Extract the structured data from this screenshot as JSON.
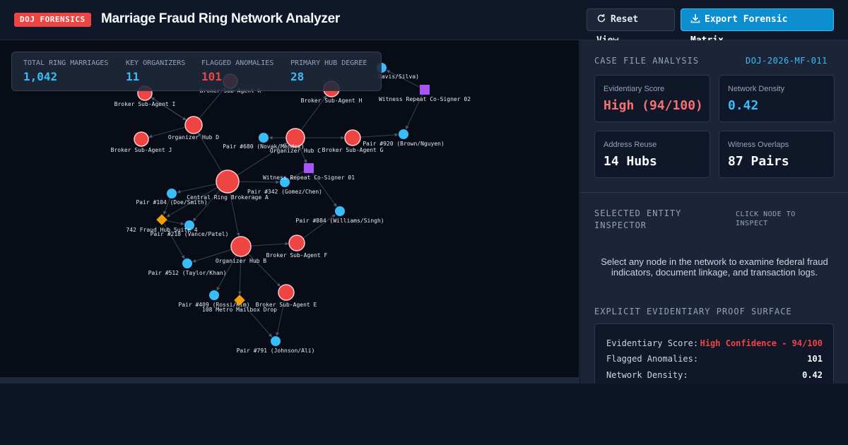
{
  "header": {
    "badge": "DOJ FORENSICS",
    "title": "Marriage Fraud Ring Network Analyzer",
    "reset_label": "Reset View",
    "export_label": "Export Forensic Matrix"
  },
  "stats": [
    {
      "label": "TOTAL RING MARRIAGES",
      "value": "1,042",
      "color": "#38bdf8"
    },
    {
      "label": "KEY ORGANIZERS",
      "value": "11",
      "color": "#38bdf8"
    },
    {
      "label": "FLAGGED ANOMALIES",
      "value": "101",
      "color": "#ef4444"
    },
    {
      "label": "PRIMARY HUB DEGREE",
      "value": "28",
      "color": "#38bdf8"
    }
  ],
  "graph": {
    "colors": {
      "organizer": "#ef4444",
      "pair": "#38bdf8",
      "witness": "#a855f7",
      "address": "#f59e0b"
    },
    "nodes": [
      {
        "id": "A",
        "label": "Central Ring Brokerage A",
        "type": "organizer"
      },
      {
        "id": "B",
        "label": "Organizer Hub B",
        "type": "organizer"
      },
      {
        "id": "C",
        "label": "Organizer Hub C",
        "type": "organizer"
      },
      {
        "id": "D",
        "label": "Organizer Hub D",
        "type": "organizer"
      },
      {
        "id": "E",
        "label": "Broker Sub-Agent E",
        "type": "organizer"
      },
      {
        "id": "F",
        "label": "Broker Sub-Agent F",
        "type": "organizer"
      },
      {
        "id": "G",
        "label": "Broker Sub-Agent G",
        "type": "organizer"
      },
      {
        "id": "H",
        "label": "Broker Sub-Agent H",
        "type": "organizer"
      },
      {
        "id": "I",
        "label": "Broker Sub-Agent I",
        "type": "organizer"
      },
      {
        "id": "J",
        "label": "Broker Sub-Agent J",
        "type": "organizer"
      },
      {
        "id": "K",
        "label": "Broker Sub-Agent K",
        "type": "organizer"
      },
      {
        "id": "P104",
        "label": "Pair #104 (Doe/Smith)",
        "type": "pair"
      },
      {
        "id": "P218",
        "label": "Pair #218 (Vance/Patel)",
        "type": "pair"
      },
      {
        "id": "P342",
        "label": "Pair #342 (Gomez/Chen)",
        "type": "pair"
      },
      {
        "id": "P409",
        "label": "Pair #409 (Rossi/Kim)",
        "type": "pair"
      },
      {
        "id": "P512",
        "label": "Pair #512 (Taylor/Khan)",
        "type": "pair"
      },
      {
        "id": "P680",
        "label": "Pair #680 (Novak/Mendez)",
        "type": "pair"
      },
      {
        "id": "P791",
        "label": "Pair #791 (Johnson/Ali)",
        "type": "pair"
      },
      {
        "id": "P884",
        "label": "Pair #884 (Williams/Singh)",
        "type": "pair"
      },
      {
        "id": "P920",
        "label": "Pair #920 (Brown/Nguyen)",
        "type": "pair"
      },
      {
        "id": "P6xx",
        "label": "Davis/Silva)",
        "type": "pair"
      },
      {
        "id": "W01",
        "label": "Witness Repeat Co-Signer 01",
        "type": "witness"
      },
      {
        "id": "W02",
        "label": "Witness Repeat Co-Signer 02",
        "type": "witness"
      },
      {
        "id": "AD742",
        "label": "742 Fraud Hub Suite 4",
        "type": "address"
      },
      {
        "id": "AD108",
        "label": "108 Metro Mailbox Drop",
        "type": "address"
      }
    ]
  },
  "case": {
    "title": "CASE FILE ANALYSIS",
    "id": "DOJ-2026-MF-011",
    "cards": [
      {
        "label": "Evidentiary Score",
        "value": "High (94/100)",
        "color": "#f87171"
      },
      {
        "label": "Network Density",
        "value": "0.42",
        "color": "#38bdf8"
      },
      {
        "label": "Address Reuse",
        "value": "14 Hubs",
        "color": "#f8fafc"
      },
      {
        "label": "Witness Overlaps",
        "value": "87 Pairs",
        "color": "#f8fafc"
      }
    ]
  },
  "inspector": {
    "title_line1": "SELECTED ENTITY",
    "title_line2": "INSPECTOR",
    "hint_line1": "CLICK NODE TO",
    "hint_line2": "INSPECT",
    "message": "Select any node in the network to examine federal fraud indicators, document linkage, and transaction logs."
  },
  "proof": {
    "title": "EXPLICIT EVIDENTIARY PROOF SURFACE",
    "rows": [
      {
        "key": "Evidentiary Score:",
        "value": "High Confidence - 94/100",
        "color": "#ef4444"
      },
      {
        "key": "Flagged Anomalies:",
        "value": "101",
        "color": "#f8fafc"
      },
      {
        "key": "Network Density:",
        "value": "0.42",
        "color": "#f8fafc"
      }
    ]
  }
}
